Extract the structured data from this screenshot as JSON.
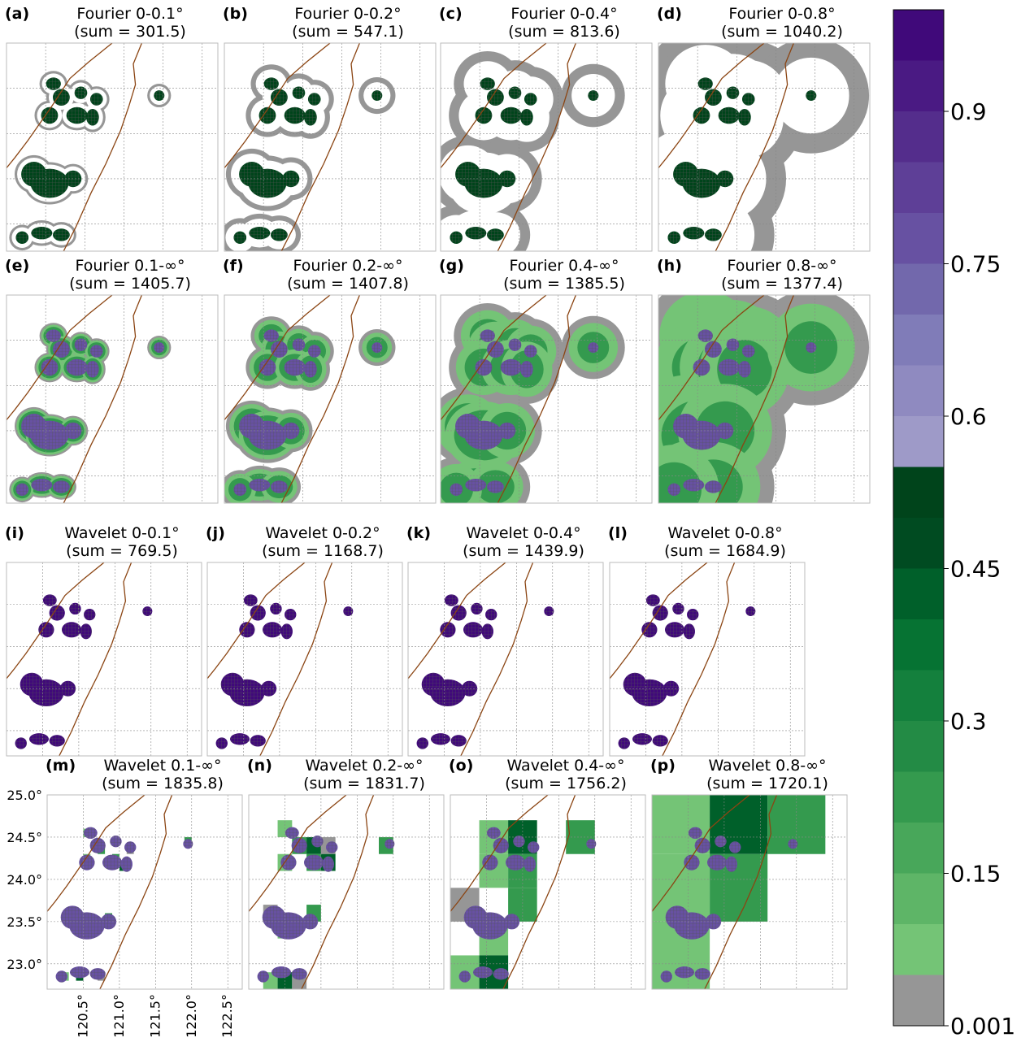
{
  "chart_data": {
    "type": "heatmap",
    "description_panels": [
      {
        "id": "a",
        "label": "(a)",
        "title": "Fourier 0-0.1°",
        "sum": "(sum = 301.5)"
      },
      {
        "id": "b",
        "label": "(b)",
        "title": "Fourier 0-0.2°",
        "sum": "(sum = 547.1)"
      },
      {
        "id": "c",
        "label": "(c)",
        "title": "Fourier 0-0.4°",
        "sum": "(sum = 813.6)"
      },
      {
        "id": "d",
        "label": "(d)",
        "title": "Fourier 0-0.8°",
        "sum": "(sum = 1040.2)"
      },
      {
        "id": "e",
        "label": "(e)",
        "title": "Fourier 0.1-∞°",
        "sum": "(sum = 1405.7)"
      },
      {
        "id": "f",
        "label": "(f)",
        "title": "Fourier 0.2-∞°",
        "sum": "(sum = 1407.8)"
      },
      {
        "id": "g",
        "label": "(g)",
        "title": "Fourier 0.4-∞°",
        "sum": "(sum = 1385.5)"
      },
      {
        "id": "h",
        "label": "(h)",
        "title": "Fourier 0.8-∞°",
        "sum": "(sum = 1377.4)"
      },
      {
        "id": "i",
        "label": "(i)",
        "title": "Wavelet 0-0.1°",
        "sum": "(sum = 769.5)"
      },
      {
        "id": "j",
        "label": "(j)",
        "title": "Wavelet 0-0.2°",
        "sum": "(sum = 1168.7)"
      },
      {
        "id": "k",
        "label": "(k)",
        "title": "Wavelet 0-0.4°",
        "sum": "(sum = 1439.9)"
      },
      {
        "id": "l",
        "label": "(l)",
        "title": "Wavelet 0-0.8°",
        "sum": "(sum = 1684.9)"
      },
      {
        "id": "m",
        "label": "(m)",
        "title": "Wavelet 0.1-∞°",
        "sum": "(sum = 1835.8)"
      },
      {
        "id": "n",
        "label": "(n)",
        "title": "Wavelet 0.2-∞°",
        "sum": "(sum = 1831.7)"
      },
      {
        "id": "o",
        "label": "(o)",
        "title": "Wavelet 0.4-∞°",
        "sum": "(sum = 1756.2)"
      },
      {
        "id": "p",
        "label": "(p)",
        "title": "Wavelet 0.8-∞°",
        "sum": "(sum = 1720.1)"
      }
    ],
    "x_ticks": [
      "120.5°",
      "121.0°",
      "121.5°",
      "122.0°",
      "122.5°"
    ],
    "x_tick_values": [
      120.5,
      121.0,
      121.5,
      122.0,
      122.5
    ],
    "y_ticks": [
      "25.0°",
      "24.5°",
      "24.0°",
      "23.5°",
      "23.0°"
    ],
    "y_tick_values": [
      25.0,
      24.5,
      24.0,
      23.5,
      23.0
    ],
    "xlim": [
      120.0,
      122.7
    ],
    "ylim": [
      22.7,
      25.0
    ],
    "grid": true,
    "colorbar": {
      "position": "right",
      "tick_labels": [
        "0.9",
        "0.75",
        "0.6",
        "0.45",
        "0.3",
        "0.15",
        "0.001"
      ],
      "tick_values": [
        0.9,
        0.75,
        0.6,
        0.45,
        0.3,
        0.15,
        0.001
      ],
      "levels": [
        0.001,
        0.05,
        0.1,
        0.15,
        0.2,
        0.25,
        0.3,
        0.35,
        0.4,
        0.45,
        0.5,
        0.55,
        0.6,
        0.65,
        0.7,
        0.75,
        0.8,
        0.85,
        0.9,
        0.95,
        1.0
      ],
      "colors": [
        "#969696",
        "#74c476",
        "#5eb567",
        "#48a75a",
        "#349a4e",
        "#238b45",
        "#14803d",
        "#067333",
        "#00602a",
        "#004b21",
        "#00441b",
        "#9e9ac8",
        "#8f8ac0",
        "#807cb8",
        "#7268ac",
        "#6751a2",
        "#5e3f97",
        "#542d8c",
        "#4a1a83",
        "#40097a",
        "#3f007d"
      ]
    }
  }
}
